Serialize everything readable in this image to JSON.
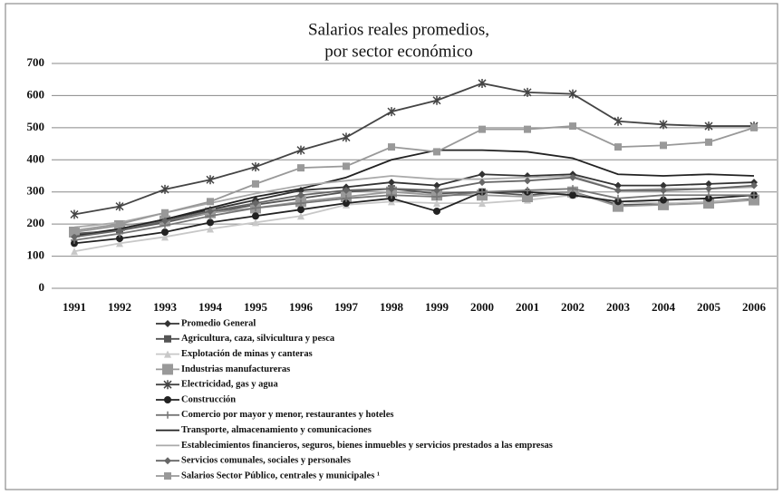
{
  "chart_data": {
    "type": "line",
    "title": [
      "Salarios reales promedios,",
      "por sector económico"
    ],
    "categories": [
      "1991",
      "1992",
      "1993",
      "1994",
      "1995",
      "1996",
      "1997",
      "1998",
      "1999",
      "2000",
      "2001",
      "2002",
      "2003",
      "2004",
      "2005",
      "2006"
    ],
    "ylim": [
      0,
      700
    ],
    "yticks": [
      0,
      100,
      200,
      300,
      400,
      500,
      600,
      700
    ],
    "grid": true,
    "series": [
      {
        "name": "Promedio General",
        "color": "#333333",
        "marker": "diamond",
        "values": [
          165,
          185,
          215,
          245,
          275,
          305,
          315,
          330,
          320,
          355,
          350,
          355,
          320,
          320,
          325,
          330
        ]
      },
      {
        "name": "Agricultura, caza, silvicultura y pesca",
        "color": "#555555",
        "marker": "square",
        "values": [
          170,
          180,
          205,
          235,
          260,
          280,
          300,
          310,
          295,
          300,
          290,
          300,
          260,
          262,
          270,
          278
        ]
      },
      {
        "name": "Explotación de minas y canteras",
        "color": "#c8c8c8",
        "marker": "triangle",
        "values": [
          115,
          140,
          160,
          185,
          205,
          225,
          260,
          270,
          265,
          265,
          275,
          290,
          270,
          265,
          270,
          275
        ]
      },
      {
        "name": "Industrias manufactureras",
        "color": "#999999",
        "marker": "bigsquare",
        "values": [
          175,
          195,
          210,
          235,
          250,
          270,
          285,
          300,
          290,
          290,
          285,
          300,
          255,
          260,
          265,
          275
        ]
      },
      {
        "name": "Electricidad, gas y agua",
        "color": "#444444",
        "marker": "star",
        "values": [
          230,
          255,
          308,
          338,
          378,
          430,
          470,
          550,
          585,
          638,
          610,
          605,
          520,
          510,
          505,
          505
        ]
      },
      {
        "name": "Construcción",
        "color": "#222222",
        "marker": "circle",
        "values": [
          140,
          155,
          175,
          205,
          225,
          245,
          265,
          280,
          240,
          300,
          300,
          290,
          270,
          275,
          280,
          290
        ]
      },
      {
        "name": "Comercio por mayor y menor, restaurantes y hoteles",
        "color": "#777777",
        "marker": "plus",
        "values": [
          150,
          170,
          195,
          225,
          250,
          265,
          280,
          290,
          285,
          300,
          305,
          310,
          280,
          290,
          290,
          290
        ]
      },
      {
        "name": "Transporte, almacenamiento y comunicaciones",
        "color": "#222222",
        "marker": "none",
        "values": [
          160,
          185,
          215,
          250,
          285,
          310,
          345,
          400,
          430,
          430,
          425,
          405,
          355,
          350,
          355,
          350
        ]
      },
      {
        "name": "Establecimientos financieros, seguros, bienes inmuebles y servicios prestados a las empresas",
        "color": "#aaaaaa",
        "marker": "none",
        "values": [
          190,
          205,
          235,
          265,
          295,
          320,
          335,
          350,
          340,
          340,
          345,
          350,
          305,
          310,
          310,
          315
        ]
      },
      {
        "name": "Servicios comunales, sociales y personales",
        "color": "#666666",
        "marker": "diamond",
        "values": [
          160,
          180,
          210,
          240,
          265,
          290,
          305,
          310,
          305,
          330,
          335,
          345,
          305,
          305,
          310,
          320
        ]
      },
      {
        "name": "Salarios Sector Público, centrales y municipales ¹",
        "color": "#999999",
        "marker": "square",
        "values": [
          180,
          200,
          235,
          270,
          325,
          375,
          380,
          440,
          425,
          495,
          495,
          505,
          440,
          445,
          455,
          500
        ]
      }
    ]
  }
}
